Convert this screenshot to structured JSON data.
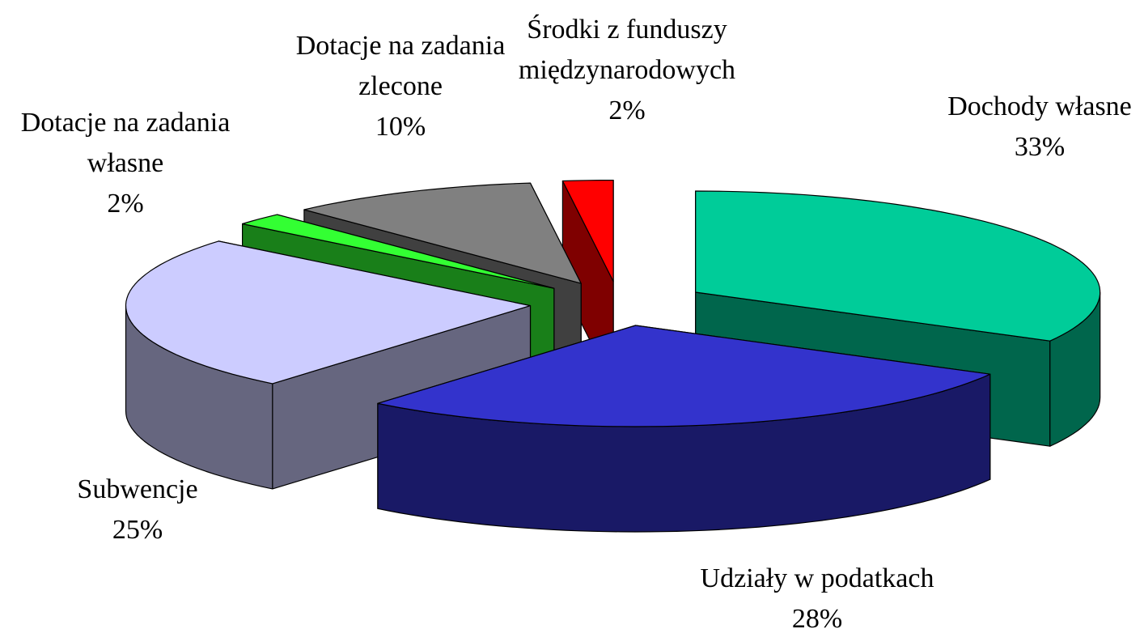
{
  "chart_data": {
    "type": "pie3d",
    "categories": [
      "Dochody własne",
      "Udziały w podatkach",
      "Subwencje",
      "Dotacje na zadania własne",
      "Dotacje na zadania zlecone",
      "Środki z funduszy międzynarodowych"
    ],
    "values": [
      33,
      28,
      25,
      2,
      10,
      2
    ],
    "value_labels": [
      "33%",
      "28%",
      "25%",
      "2%",
      "10%",
      "2%"
    ],
    "colors": [
      "#00cc99",
      "#3333cc",
      "#ccccff",
      "#33ff33",
      "#808080",
      "#ff0000"
    ]
  }
}
